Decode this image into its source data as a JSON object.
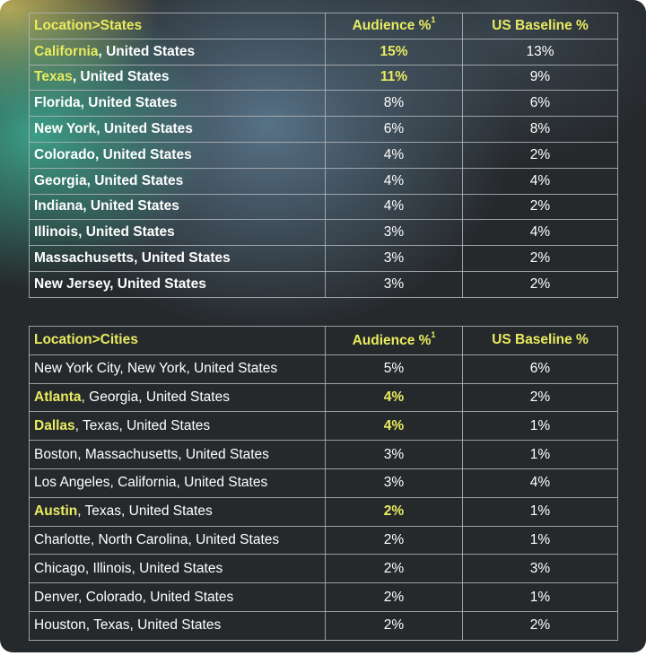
{
  "states": {
    "header": {
      "location": "Location>States",
      "audience": "Audience %",
      "audience_sup": "1",
      "baseline": "US Baseline %"
    },
    "rows": [
      {
        "name": "California",
        "rest": ", United States",
        "audience": "15%",
        "baseline": "13%",
        "highlight": true
      },
      {
        "name": "Texas",
        "rest": ", United States",
        "audience": "11%",
        "baseline": "9%",
        "highlight": true
      },
      {
        "name": "Florida",
        "rest": ", United States",
        "audience": "8%",
        "baseline": "6%",
        "highlight": false
      },
      {
        "name": "New York",
        "rest": ", United States",
        "audience": "6%",
        "baseline": "8%",
        "highlight": false
      },
      {
        "name": "Colorado",
        "rest": ", United States",
        "audience": "4%",
        "baseline": "2%",
        "highlight": false
      },
      {
        "name": "Georgia",
        "rest": ", United States",
        "audience": "4%",
        "baseline": "4%",
        "highlight": false
      },
      {
        "name": "Indiana",
        "rest": ", United States",
        "audience": "4%",
        "baseline": "2%",
        "highlight": false
      },
      {
        "name": "Illinois",
        "rest": ", United States",
        "audience": "3%",
        "baseline": "4%",
        "highlight": false
      },
      {
        "name": "Massachusetts",
        "rest": ", United States",
        "audience": "3%",
        "baseline": "2%",
        "highlight": false
      },
      {
        "name": "New Jersey",
        "rest": ", United States",
        "audience": "3%",
        "baseline": "2%",
        "highlight": false
      }
    ]
  },
  "cities": {
    "header": {
      "location": "Location>Cities",
      "audience": "Audience %",
      "audience_sup": "1",
      "baseline": "US Baseline %"
    },
    "rows": [
      {
        "name": "New York City",
        "rest": ", New York, United States",
        "audience": "5%",
        "baseline": "6%",
        "highlight": false
      },
      {
        "name": "Atlanta",
        "rest": ", Georgia, United States",
        "audience": "4%",
        "baseline": "2%",
        "highlight": true
      },
      {
        "name": "Dallas",
        "rest": ", Texas, United States",
        "audience": "4%",
        "baseline": "1%",
        "highlight": true
      },
      {
        "name": "Boston",
        "rest": ", Massachusetts, United States",
        "audience": "3%",
        "baseline": "1%",
        "highlight": false
      },
      {
        "name": "Los Angeles",
        "rest": ", California, United States",
        "audience": "3%",
        "baseline": "4%",
        "highlight": false
      },
      {
        "name": "Austin",
        "rest": ", Texas, United States",
        "audience": "2%",
        "baseline": "1%",
        "highlight": true
      },
      {
        "name": "Charlotte",
        "rest": ", North Carolina, United States",
        "audience": "2%",
        "baseline": "1%",
        "highlight": false
      },
      {
        "name": "Chicago",
        "rest": ", Illinois, United States",
        "audience": "2%",
        "baseline": "3%",
        "highlight": false
      },
      {
        "name": "Denver",
        "rest": ", Colorado, United States",
        "audience": "2%",
        "baseline": "1%",
        "highlight": false
      },
      {
        "name": "Houston",
        "rest": ", Texas, United States",
        "audience": "2%",
        "baseline": "2%",
        "highlight": false
      }
    ]
  },
  "colors": {
    "highlight": "#e9ec5f",
    "text": "#ffffff",
    "border": "#afb4b9",
    "background": "#26292c"
  }
}
